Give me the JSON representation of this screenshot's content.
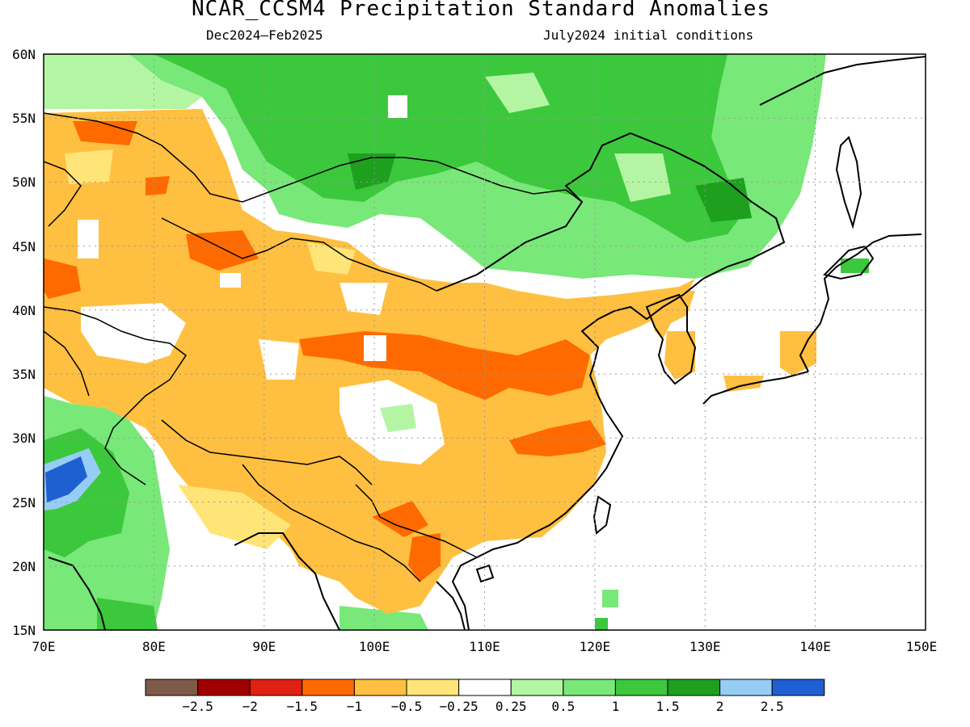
{
  "title": "NCAR_CCSM4 Precipitation Standard Anomalies",
  "subtitle_left": "Dec2024–Feb2025",
  "subtitle_right": "July2024 initial conditions",
  "lat_labels": [
    "60N",
    "55N",
    "50N",
    "45N",
    "40N",
    "35N",
    "30N",
    "25N",
    "20N",
    "15N"
  ],
  "lon_labels": [
    "70E",
    "80E",
    "90E",
    "100E",
    "110E",
    "120E",
    "130E",
    "140E",
    "150E"
  ],
  "colorbar": {
    "colors": [
      "#7f5a4a",
      "#a00000",
      "#e02010",
      "#ff6a00",
      "#ffbf40",
      "#ffe478",
      "#ffffff",
      "#b4f5a4",
      "#78e878",
      "#3cc83c",
      "#1ea01e",
      "#96cdf5",
      "#1e5fd2"
    ],
    "labels": [
      "−2.5",
      "−2",
      "−1.5",
      "−1",
      "−0.5",
      "−0.25",
      "0.25",
      "0.5",
      "1",
      "1.5",
      "2",
      "2.5"
    ]
  }
}
